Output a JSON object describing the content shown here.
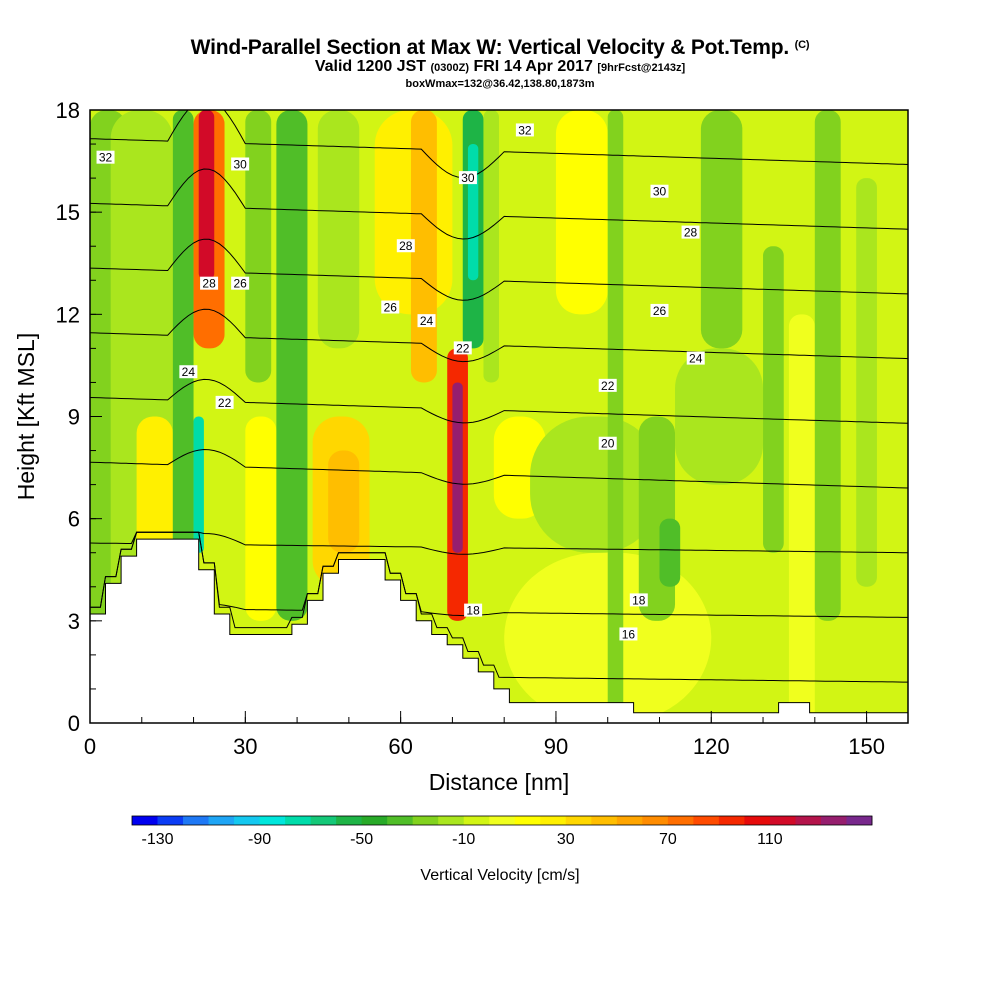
{
  "header": {
    "title_main": "Wind-Parallel Section at Max W: Vertical Velocity & Pot.Temp.",
    "title_mark": "(C)",
    "valid_prefix": "Valid 1200 JST",
    "valid_zulu": "(0300Z)",
    "valid_date": "FRI 14 Apr 2017",
    "valid_fcst": "[9hrFcst@2143z]",
    "box_info": "boxWmax=132@36.42,138.80,1873m"
  },
  "chart_data": {
    "type": "heatmap",
    "xlabel": "Distance [nm]",
    "ylabel": "Height [Kft MSL]",
    "xlim": [
      0,
      158
    ],
    "ylim": [
      0,
      18
    ],
    "x_ticks": [
      0,
      30,
      60,
      90,
      120,
      150
    ],
    "y_ticks": [
      0,
      3,
      6,
      9,
      12,
      15,
      18
    ],
    "colorbar": {
      "label": "Vertical Velocity [cm/s]",
      "min": -140,
      "max": 150,
      "step": 10,
      "tick_labels": [
        -130,
        -90,
        -50,
        -10,
        30,
        70,
        110
      ],
      "colors": [
        "#0000f0",
        "#0a3cf5",
        "#1e78f5",
        "#1ea5f5",
        "#14c8f0",
        "#00e6dc",
        "#00dcaa",
        "#14c878",
        "#1eb446",
        "#28aa28",
        "#50be28",
        "#82d21e",
        "#aae61e",
        "#d2f514",
        "#f0ff1e",
        "#ffff00",
        "#fff000",
        "#ffd700",
        "#ffbe00",
        "#ffa500",
        "#ff8c00",
        "#ff6e00",
        "#ff4b00",
        "#f52800",
        "#e60a0a",
        "#d20a28",
        "#b4144b",
        "#961e6e",
        "#78288c"
      ]
    },
    "field_cells": [
      {
        "x": [
          0,
          7
        ],
        "y": [
          0,
          18
        ],
        "value": -30
      },
      {
        "x": [
          4,
          16
        ],
        "y": [
          0,
          18
        ],
        "value": -15
      },
      {
        "x": [
          9,
          16
        ],
        "y": [
          4,
          9
        ],
        "value": 20
      },
      {
        "x": [
          16,
          20
        ],
        "y": [
          5,
          18
        ],
        "value": -40
      },
      {
        "x": [
          20,
          22
        ],
        "y": [
          5,
          9
        ],
        "value": -80
      },
      {
        "x": [
          20,
          26
        ],
        "y": [
          11,
          18
        ],
        "value": 70
      },
      {
        "x": [
          21,
          24
        ],
        "y": [
          13,
          18
        ],
        "value": 110
      },
      {
        "x": [
          26,
          30
        ],
        "y": [
          0,
          18
        ],
        "value": -10
      },
      {
        "x": [
          30,
          36
        ],
        "y": [
          3,
          9
        ],
        "value": 15
      },
      {
        "x": [
          30,
          35
        ],
        "y": [
          10,
          18
        ],
        "value": -25
      },
      {
        "x": [
          36,
          42
        ],
        "y": [
          3,
          18
        ],
        "value": -35
      },
      {
        "x": [
          43,
          54
        ],
        "y": [
          4,
          9
        ],
        "value": 30
      },
      {
        "x": [
          46,
          52
        ],
        "y": [
          5,
          8
        ],
        "value": 45
      },
      {
        "x": [
          44,
          52
        ],
        "y": [
          11,
          18
        ],
        "value": -20
      },
      {
        "x": [
          55,
          68
        ],
        "y": [
          5,
          9
        ],
        "value": -5
      },
      {
        "x": [
          55,
          70
        ],
        "y": [
          12,
          18
        ],
        "value": 20
      },
      {
        "x": [
          62,
          67
        ],
        "y": [
          10,
          18
        ],
        "value": 40
      },
      {
        "x": [
          67,
          73
        ],
        "y": [
          0,
          6
        ],
        "value": -10
      },
      {
        "x": [
          69,
          73
        ],
        "y": [
          3,
          11
        ],
        "value": 90
      },
      {
        "x": [
          70,
          72
        ],
        "y": [
          5,
          10
        ],
        "value": 130
      },
      {
        "x": [
          72,
          76
        ],
        "y": [
          11,
          18
        ],
        "value": -60
      },
      {
        "x": [
          73,
          75
        ],
        "y": [
          13,
          17
        ],
        "value": -80
      },
      {
        "x": [
          76,
          79
        ],
        "y": [
          10,
          18
        ],
        "value": -20
      },
      {
        "x": [
          78,
          88
        ],
        "y": [
          6,
          9
        ],
        "value": 10
      },
      {
        "x": [
          80,
          120
        ],
        "y": [
          0,
          5
        ],
        "value": 0
      },
      {
        "x": [
          85,
          110
        ],
        "y": [
          5,
          9
        ],
        "value": -15
      },
      {
        "x": [
          90,
          100
        ],
        "y": [
          12,
          18
        ],
        "value": 10
      },
      {
        "x": [
          100,
          103
        ],
        "y": [
          0,
          18
        ],
        "value": -25
      },
      {
        "x": [
          106,
          113
        ],
        "y": [
          3,
          9
        ],
        "value": -30
      },
      {
        "x": [
          110,
          114
        ],
        "y": [
          4,
          6
        ],
        "value": -40
      },
      {
        "x": [
          113,
          130
        ],
        "y": [
          7,
          11
        ],
        "value": -20
      },
      {
        "x": [
          118,
          126
        ],
        "y": [
          11,
          18
        ],
        "value": -25
      },
      {
        "x": [
          130,
          134
        ],
        "y": [
          5,
          14
        ],
        "value": -30
      },
      {
        "x": [
          135,
          140
        ],
        "y": [
          0,
          12
        ],
        "value": 5
      },
      {
        "x": [
          140,
          145
        ],
        "y": [
          3,
          18
        ],
        "value": -25
      },
      {
        "x": [
          148,
          152
        ],
        "y": [
          4,
          16
        ],
        "value": -20
      },
      {
        "x": [
          153,
          158
        ],
        "y": [
          0,
          18
        ],
        "value": -10
      }
    ],
    "terrain": [
      [
        0,
        3.2
      ],
      [
        3,
        3.2
      ],
      [
        3,
        4.1
      ],
      [
        6,
        4.1
      ],
      [
        6,
        4.9
      ],
      [
        9,
        4.9
      ],
      [
        9,
        5.4
      ],
      [
        21,
        5.4
      ],
      [
        21,
        4.5
      ],
      [
        24,
        4.5
      ],
      [
        24,
        3.2
      ],
      [
        27,
        3.2
      ],
      [
        27,
        2.6
      ],
      [
        39,
        2.6
      ],
      [
        39,
        2.9
      ],
      [
        42,
        2.9
      ],
      [
        42,
        3.6
      ],
      [
        45,
        3.6
      ],
      [
        45,
        4.4
      ],
      [
        48,
        4.4
      ],
      [
        48,
        4.8
      ],
      [
        57,
        4.8
      ],
      [
        57,
        4.2
      ],
      [
        60,
        4.2
      ],
      [
        60,
        3.6
      ],
      [
        63,
        3.6
      ],
      [
        63,
        3.0
      ],
      [
        66,
        3.0
      ],
      [
        66,
        2.6
      ],
      [
        69,
        2.6
      ],
      [
        69,
        2.3
      ],
      [
        72,
        2.3
      ],
      [
        72,
        1.9
      ],
      [
        75,
        1.9
      ],
      [
        75,
        1.5
      ],
      [
        78,
        1.5
      ],
      [
        78,
        1.0
      ],
      [
        81,
        1.0
      ],
      [
        81,
        0.6
      ],
      [
        105,
        0.6
      ],
      [
        105,
        0.3
      ],
      [
        133,
        0.3
      ],
      [
        133,
        0.6
      ],
      [
        139,
        0.6
      ],
      [
        139,
        0.3
      ],
      [
        158,
        0.3
      ]
    ],
    "isentropes_K": [
      16,
      18,
      20,
      22,
      24,
      26,
      28,
      30,
      32
    ],
    "contour_label_list": [
      {
        "text": "32",
        "x": 3,
        "y": 16.6
      },
      {
        "text": "30",
        "x": 29,
        "y": 16.4
      },
      {
        "text": "28",
        "x": 23,
        "y": 12.9
      },
      {
        "text": "26",
        "x": 29,
        "y": 12.9
      },
      {
        "text": "24",
        "x": 19,
        "y": 10.3
      },
      {
        "text": "22",
        "x": 26,
        "y": 9.4
      },
      {
        "text": "32",
        "x": 84,
        "y": 17.4
      },
      {
        "text": "30",
        "x": 73,
        "y": 16.0
      },
      {
        "text": "28",
        "x": 61,
        "y": 14.0
      },
      {
        "text": "26",
        "x": 58,
        "y": 12.2
      },
      {
        "text": "24",
        "x": 65,
        "y": 11.8
      },
      {
        "text": "22",
        "x": 72,
        "y": 11.0
      },
      {
        "text": "30",
        "x": 110,
        "y": 15.6
      },
      {
        "text": "28",
        "x": 116,
        "y": 14.4
      },
      {
        "text": "26",
        "x": 110,
        "y": 12.1
      },
      {
        "text": "24",
        "x": 117,
        "y": 10.7
      },
      {
        "text": "22",
        "x": 100,
        "y": 9.9
      },
      {
        "text": "20",
        "x": 100,
        "y": 8.2
      },
      {
        "text": "18",
        "x": 106,
        "y": 3.6
      },
      {
        "text": "16",
        "x": 104,
        "y": 2.6
      },
      {
        "text": "18",
        "x": 74,
        "y": 3.3
      }
    ]
  }
}
